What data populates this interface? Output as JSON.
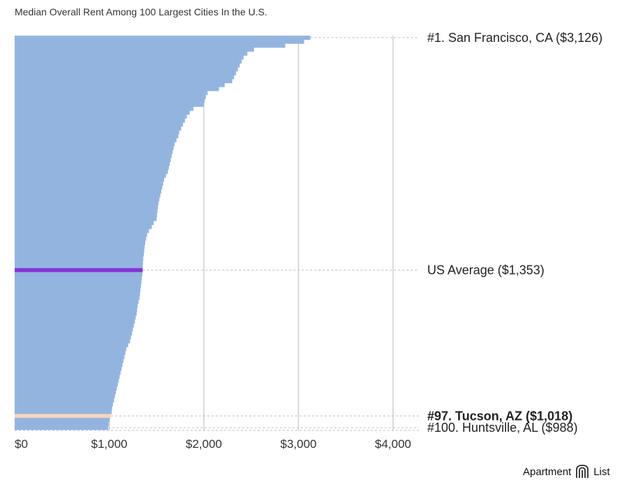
{
  "chart_data": {
    "type": "bar",
    "orientation": "horizontal",
    "title": "Median Overall Rent Among 100 Largest Cities In the U.S.",
    "xlabel": "",
    "ylabel": "",
    "xlim": [
      0,
      4200
    ],
    "x_ticks": [
      0,
      1000,
      2000,
      3000,
      4000
    ],
    "x_tick_labels": [
      "$0",
      "$1,000",
      "$2,000",
      "$3,000",
      "$4,000"
    ],
    "grid": true,
    "ranks": [
      1,
      2,
      3,
      4,
      5,
      6,
      7,
      8,
      9,
      10,
      11,
      12,
      13,
      14,
      15,
      16,
      17,
      18,
      19,
      20,
      21,
      22,
      23,
      24,
      25,
      26,
      27,
      28,
      29,
      30,
      31,
      32,
      33,
      34,
      35,
      36,
      37,
      38,
      39,
      40,
      41,
      42,
      43,
      44,
      45,
      46,
      47,
      48,
      49,
      50,
      51,
      52,
      53,
      54,
      55,
      56,
      57,
      58,
      59,
      60,
      61,
      62,
      63,
      64,
      65,
      66,
      67,
      68,
      69,
      70,
      71,
      72,
      73,
      74,
      75,
      76,
      77,
      78,
      79,
      80,
      81,
      82,
      83,
      84,
      85,
      86,
      87,
      88,
      89,
      90,
      91,
      92,
      93,
      94,
      95,
      96,
      97,
      98,
      99,
      100
    ],
    "values": [
      3126,
      3060,
      2860,
      2530,
      2460,
      2420,
      2400,
      2380,
      2360,
      2340,
      2320,
      2300,
      2220,
      2160,
      2040,
      2020,
      2010,
      2000,
      1890,
      1850,
      1820,
      1800,
      1780,
      1760,
      1740,
      1730,
      1710,
      1690,
      1680,
      1670,
      1660,
      1650,
      1640,
      1630,
      1620,
      1600,
      1580,
      1570,
      1560,
      1550,
      1540,
      1530,
      1520,
      1515,
      1510,
      1505,
      1500,
      1470,
      1450,
      1420,
      1400,
      1390,
      1380,
      1375,
      1370,
      1365,
      1360,
      1357,
      1355,
      1353,
      1350,
      1345,
      1340,
      1335,
      1330,
      1325,
      1320,
      1310,
      1300,
      1295,
      1290,
      1280,
      1270,
      1260,
      1250,
      1240,
      1230,
      1220,
      1200,
      1180,
      1170,
      1160,
      1150,
      1140,
      1130,
      1120,
      1110,
      1100,
      1090,
      1080,
      1070,
      1060,
      1050,
      1040,
      1030,
      1025,
      1018,
      1005,
      995,
      988
    ],
    "series_colors": {
      "default": "#94b4e0",
      "average": "#8234d6",
      "highlight": "#f8d4bf"
    },
    "average": {
      "value": 1353,
      "label": "US Average ($1,353)"
    },
    "annotations": [
      {
        "rank": 1,
        "label": "#1. San Francisco, CA ($3,126)",
        "bold": false
      },
      {
        "rank": 97,
        "label": "#97. Tucson, AZ ($1,018)",
        "bold": true
      },
      {
        "rank": 100,
        "label": "#100. Huntsville, AL ($988)",
        "bold": false
      }
    ]
  },
  "brand": {
    "name_left": "Apartment",
    "name_right": "List"
  }
}
